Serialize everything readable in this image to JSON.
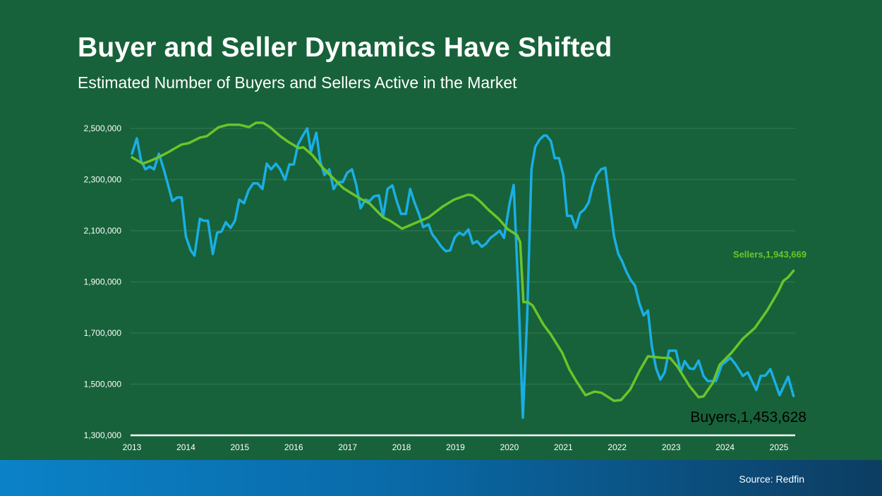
{
  "header": {
    "title": "Buyer and Seller Dynamics Have Shifted",
    "subtitle": "Estimated Number of Buyers and Sellers Active in the Market"
  },
  "footer": {
    "source": "Source: Redfin"
  },
  "colors": {
    "background": "#17623a",
    "buyers": "#1aaee6",
    "sellers": "#6cc42a"
  },
  "chart_data": {
    "type": "line",
    "title": "Buyer and Seller Dynamics Have Shifted",
    "subtitle": "Estimated Number of Buyers and Sellers Active in the Market",
    "xlabel": "",
    "ylabel": "",
    "xlim": [
      2013,
      2025.27
    ],
    "ylim": [
      1300000,
      2500000
    ],
    "grid": true,
    "x_ticks": [
      "2013",
      "2014",
      "2015",
      "2016",
      "2017",
      "2018",
      "2019",
      "2020",
      "2021",
      "2022",
      "2023",
      "2024",
      "2025"
    ],
    "y_ticks": [
      "1,300,000",
      "1,500,000",
      "1,700,000",
      "1,900,000",
      "2,100,000",
      "2,300,000",
      "2,500,000"
    ],
    "y_tick_values": [
      1300000,
      1500000,
      1700000,
      1900000,
      2100000,
      2300000,
      2500000
    ],
    "annotations": {
      "sellers": "Sellers,1,943,669",
      "buyers": "Buyers,1,453,628"
    },
    "series": [
      {
        "name": "Buyers",
        "points": [
          [
            2013.0,
            2401
          ],
          [
            2013.09,
            2461
          ],
          [
            2013.17,
            2373
          ],
          [
            2013.25,
            2340
          ],
          [
            2013.33,
            2351
          ],
          [
            2013.41,
            2340
          ],
          [
            2013.5,
            2401
          ],
          [
            2013.59,
            2340
          ],
          [
            2013.67,
            2279
          ],
          [
            2013.75,
            2216
          ],
          [
            2013.84,
            2230
          ],
          [
            2013.92,
            2230
          ],
          [
            2014.0,
            2078
          ],
          [
            2014.09,
            2023
          ],
          [
            2014.16,
            2003
          ],
          [
            2014.26,
            2147
          ],
          [
            2014.33,
            2139
          ],
          [
            2014.41,
            2139
          ],
          [
            2014.5,
            2009
          ],
          [
            2014.58,
            2092
          ],
          [
            2014.66,
            2097
          ],
          [
            2014.74,
            2133
          ],
          [
            2014.83,
            2111
          ],
          [
            2014.91,
            2139
          ],
          [
            2014.99,
            2221
          ],
          [
            2015.08,
            2208
          ],
          [
            2015.16,
            2257
          ],
          [
            2015.25,
            2285
          ],
          [
            2015.33,
            2285
          ],
          [
            2015.42,
            2263
          ],
          [
            2015.5,
            2362
          ],
          [
            2015.58,
            2340
          ],
          [
            2015.67,
            2362
          ],
          [
            2015.75,
            2340
          ],
          [
            2015.84,
            2299
          ],
          [
            2015.92,
            2359
          ],
          [
            2016.0,
            2359
          ],
          [
            2016.08,
            2437
          ],
          [
            2016.17,
            2472
          ],
          [
            2016.25,
            2500
          ],
          [
            2016.32,
            2409
          ],
          [
            2016.42,
            2483
          ],
          [
            2016.49,
            2373
          ],
          [
            2016.57,
            2318
          ],
          [
            2016.66,
            2340
          ],
          [
            2016.74,
            2263
          ],
          [
            2016.82,
            2290
          ],
          [
            2016.91,
            2290
          ],
          [
            2016.99,
            2326
          ],
          [
            2017.08,
            2340
          ],
          [
            2017.16,
            2279
          ],
          [
            2017.24,
            2188
          ],
          [
            2017.33,
            2221
          ],
          [
            2017.41,
            2216
          ],
          [
            2017.49,
            2235
          ],
          [
            2017.58,
            2238
          ],
          [
            2017.66,
            2155
          ],
          [
            2017.74,
            2263
          ],
          [
            2017.83,
            2277
          ],
          [
            2017.91,
            2216
          ],
          [
            2017.99,
            2166
          ],
          [
            2018.08,
            2166
          ],
          [
            2018.16,
            2263
          ],
          [
            2018.23,
            2216
          ],
          [
            2018.33,
            2161
          ],
          [
            2018.4,
            2114
          ],
          [
            2018.5,
            2125
          ],
          [
            2018.57,
            2086
          ],
          [
            2018.65,
            2064
          ],
          [
            2018.74,
            2037
          ],
          [
            2018.82,
            2020
          ],
          [
            2018.9,
            2023
          ],
          [
            2018.99,
            2075
          ],
          [
            2019.07,
            2092
          ],
          [
            2019.15,
            2083
          ],
          [
            2019.24,
            2105
          ],
          [
            2019.32,
            2050
          ],
          [
            2019.4,
            2059
          ],
          [
            2019.49,
            2037
          ],
          [
            2019.57,
            2050
          ],
          [
            2019.65,
            2072
          ],
          [
            2019.74,
            2086
          ],
          [
            2019.82,
            2100
          ],
          [
            2019.9,
            2072
          ],
          [
            2020.0,
            2202
          ],
          [
            2020.08,
            2279
          ],
          [
            2020.17,
            1843
          ],
          [
            2020.25,
            1369
          ],
          [
            2020.33,
            1761
          ],
          [
            2020.41,
            2340
          ],
          [
            2020.48,
            2428
          ],
          [
            2020.56,
            2456
          ],
          [
            2020.64,
            2472
          ],
          [
            2020.69,
            2472
          ],
          [
            2020.77,
            2450
          ],
          [
            2020.84,
            2384
          ],
          [
            2020.92,
            2384
          ],
          [
            2021.0,
            2318
          ],
          [
            2021.07,
            2158
          ],
          [
            2021.15,
            2158
          ],
          [
            2021.23,
            2111
          ],
          [
            2021.31,
            2169
          ],
          [
            2021.39,
            2183
          ],
          [
            2021.47,
            2210
          ],
          [
            2021.54,
            2271
          ],
          [
            2021.62,
            2318
          ],
          [
            2021.7,
            2340
          ],
          [
            2021.78,
            2346
          ],
          [
            2021.86,
            2208
          ],
          [
            2021.94,
            2078
          ],
          [
            2022.02,
            2009
          ],
          [
            2022.09,
            1981
          ],
          [
            2022.17,
            1940
          ],
          [
            2022.25,
            1907
          ],
          [
            2022.33,
            1885
          ],
          [
            2022.41,
            1816
          ],
          [
            2022.49,
            1769
          ],
          [
            2022.57,
            1788
          ],
          [
            2022.64,
            1650
          ],
          [
            2022.72,
            1562
          ],
          [
            2022.8,
            1518
          ],
          [
            2022.88,
            1546
          ],
          [
            2022.96,
            1631
          ],
          [
            2023.09,
            1631
          ],
          [
            2023.18,
            1548
          ],
          [
            2023.25,
            1590
          ],
          [
            2023.34,
            1562
          ],
          [
            2023.42,
            1559
          ],
          [
            2023.51,
            1592
          ],
          [
            2023.6,
            1532
          ],
          [
            2023.68,
            1512
          ],
          [
            2023.83,
            1512
          ],
          [
            2023.94,
            1576
          ],
          [
            2024.1,
            1603
          ],
          [
            2024.2,
            1576
          ],
          [
            2024.33,
            1532
          ],
          [
            2024.42,
            1546
          ],
          [
            2024.58,
            1477
          ],
          [
            2024.66,
            1532
          ],
          [
            2024.75,
            1534
          ],
          [
            2024.84,
            1559
          ],
          [
            2025.01,
            1457
          ],
          [
            2025.17,
            1529
          ],
          [
            2025.27,
            1453.628
          ]
        ]
      },
      {
        "name": "Sellers",
        "points": [
          [
            2013.0,
            2387
          ],
          [
            2013.2,
            2362
          ],
          [
            2013.34,
            2373
          ],
          [
            2013.52,
            2390
          ],
          [
            2013.69,
            2409
          ],
          [
            2013.92,
            2437
          ],
          [
            2014.05,
            2442
          ],
          [
            2014.26,
            2464
          ],
          [
            2014.39,
            2470
          ],
          [
            2014.61,
            2505
          ],
          [
            2014.78,
            2514
          ],
          [
            2015.0,
            2514
          ],
          [
            2015.17,
            2505
          ],
          [
            2015.3,
            2522
          ],
          [
            2015.43,
            2522
          ],
          [
            2015.56,
            2505
          ],
          [
            2015.75,
            2470
          ],
          [
            2015.88,
            2450
          ],
          [
            2016.09,
            2423
          ],
          [
            2016.18,
            2426
          ],
          [
            2016.35,
            2395
          ],
          [
            2016.53,
            2348
          ],
          [
            2016.7,
            2312
          ],
          [
            2016.92,
            2266
          ],
          [
            2017.1,
            2243
          ],
          [
            2017.27,
            2221
          ],
          [
            2017.4,
            2208
          ],
          [
            2017.66,
            2152
          ],
          [
            2017.79,
            2139
          ],
          [
            2018.01,
            2108
          ],
          [
            2018.23,
            2128
          ],
          [
            2018.5,
            2152
          ],
          [
            2018.76,
            2194
          ],
          [
            2018.97,
            2221
          ],
          [
            2019.23,
            2241
          ],
          [
            2019.32,
            2238
          ],
          [
            2019.45,
            2216
          ],
          [
            2019.62,
            2180
          ],
          [
            2019.8,
            2147
          ],
          [
            2019.97,
            2106
          ],
          [
            2020.14,
            2083
          ],
          [
            2020.2,
            2056
          ],
          [
            2020.26,
            1821
          ],
          [
            2020.34,
            1821
          ],
          [
            2020.43,
            1808
          ],
          [
            2020.63,
            1733
          ],
          [
            2020.76,
            1697
          ],
          [
            2020.98,
            1623
          ],
          [
            2021.11,
            1559
          ],
          [
            2021.24,
            1512
          ],
          [
            2021.41,
            1457
          ],
          [
            2021.58,
            1471
          ],
          [
            2021.71,
            1466
          ],
          [
            2021.94,
            1435
          ],
          [
            2022.07,
            1438
          ],
          [
            2022.24,
            1479
          ],
          [
            2022.42,
            1554
          ],
          [
            2022.57,
            1609
          ],
          [
            2022.85,
            1603
          ],
          [
            2022.98,
            1603
          ],
          [
            2023.12,
            1568
          ],
          [
            2023.34,
            1493
          ],
          [
            2023.51,
            1449
          ],
          [
            2023.6,
            1452
          ],
          [
            2023.77,
            1504
          ],
          [
            2023.9,
            1576
          ],
          [
            2024.12,
            1623
          ],
          [
            2024.33,
            1678
          ],
          [
            2024.55,
            1719
          ],
          [
            2024.78,
            1788
          ],
          [
            2024.99,
            1863
          ],
          [
            2025.08,
            1904
          ],
          [
            2025.17,
            1918
          ],
          [
            2025.27,
            1943.669
          ]
        ]
      }
    ]
  }
}
